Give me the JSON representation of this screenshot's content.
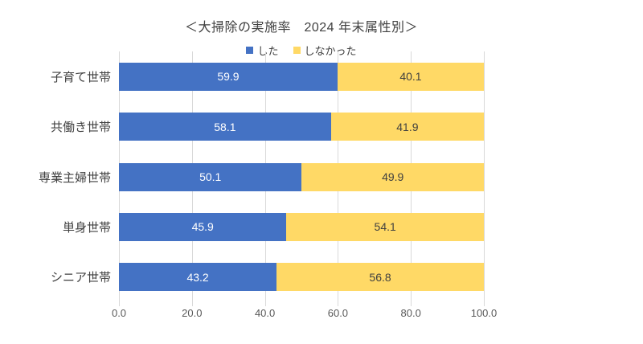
{
  "title": "＜大掃除の実施率　2024 年末属性別＞",
  "chart_data": {
    "type": "bar",
    "orientation": "horizontal-stacked",
    "title": "＜大掃除の実施率　2024 年末属性別＞",
    "categories": [
      "子育て世帯",
      "共働き世帯",
      "専業主婦世帯",
      "単身世帯",
      "シニア世帯"
    ],
    "series": [
      {
        "name": "した",
        "color": "#4472c4",
        "label_color": "#ffffff",
        "values": [
          59.9,
          58.1,
          50.1,
          45.9,
          43.2
        ]
      },
      {
        "name": "しなかった",
        "color": "#ffd966",
        "label_color": "#404040",
        "values": [
          40.1,
          41.9,
          49.9,
          54.1,
          56.8
        ]
      }
    ],
    "x_ticks": [
      "0.0",
      "20.0",
      "40.0",
      "60.0",
      "80.0",
      "100.0"
    ],
    "xlim": [
      0,
      100
    ],
    "unit": "%",
    "grid": true,
    "legend_position": "top"
  },
  "colors": {
    "grid": "#d9d9d9",
    "axis_text": "#595959",
    "label_text": "#404040",
    "background": "#ffffff"
  }
}
